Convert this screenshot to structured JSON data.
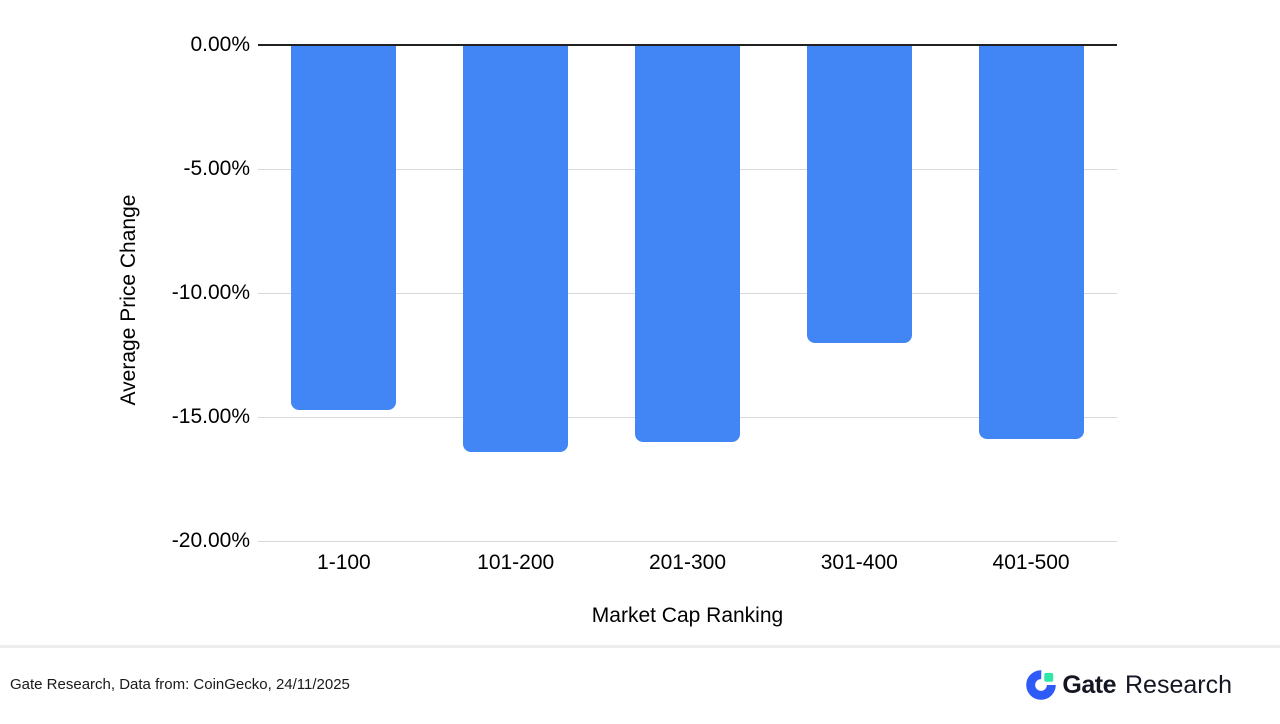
{
  "chart_data": {
    "type": "bar",
    "title": "",
    "xlabel": "Market Cap Ranking",
    "ylabel": "Average Price Change",
    "categories": [
      "1-100",
      "101-200",
      "201-300",
      "301-400",
      "401-500"
    ],
    "values": [
      -14.7,
      -16.4,
      -16.0,
      -12.0,
      -15.9
    ],
    "y_ticks": [
      {
        "label": "0.00%",
        "value": 0
      },
      {
        "label": "-5.00%",
        "value": -5
      },
      {
        "label": "-10.00%",
        "value": -10
      },
      {
        "label": "-15.00%",
        "value": -15
      },
      {
        "label": "-20.00%",
        "value": -20
      }
    ],
    "ylim": [
      0,
      -20
    ],
    "grid": true,
    "legend": "none",
    "bar_color": "#4285F4",
    "grid_color": "#d9d9d9",
    "zero_line_color": "#212121"
  },
  "footer": {
    "source_text": "Gate Research, Data from: CoinGecko, 24/11/2025",
    "brand_name": "Gate",
    "brand_suffix": "Research",
    "logo_blue": "#2E5BF7",
    "logo_green": "#2EE6A6"
  }
}
